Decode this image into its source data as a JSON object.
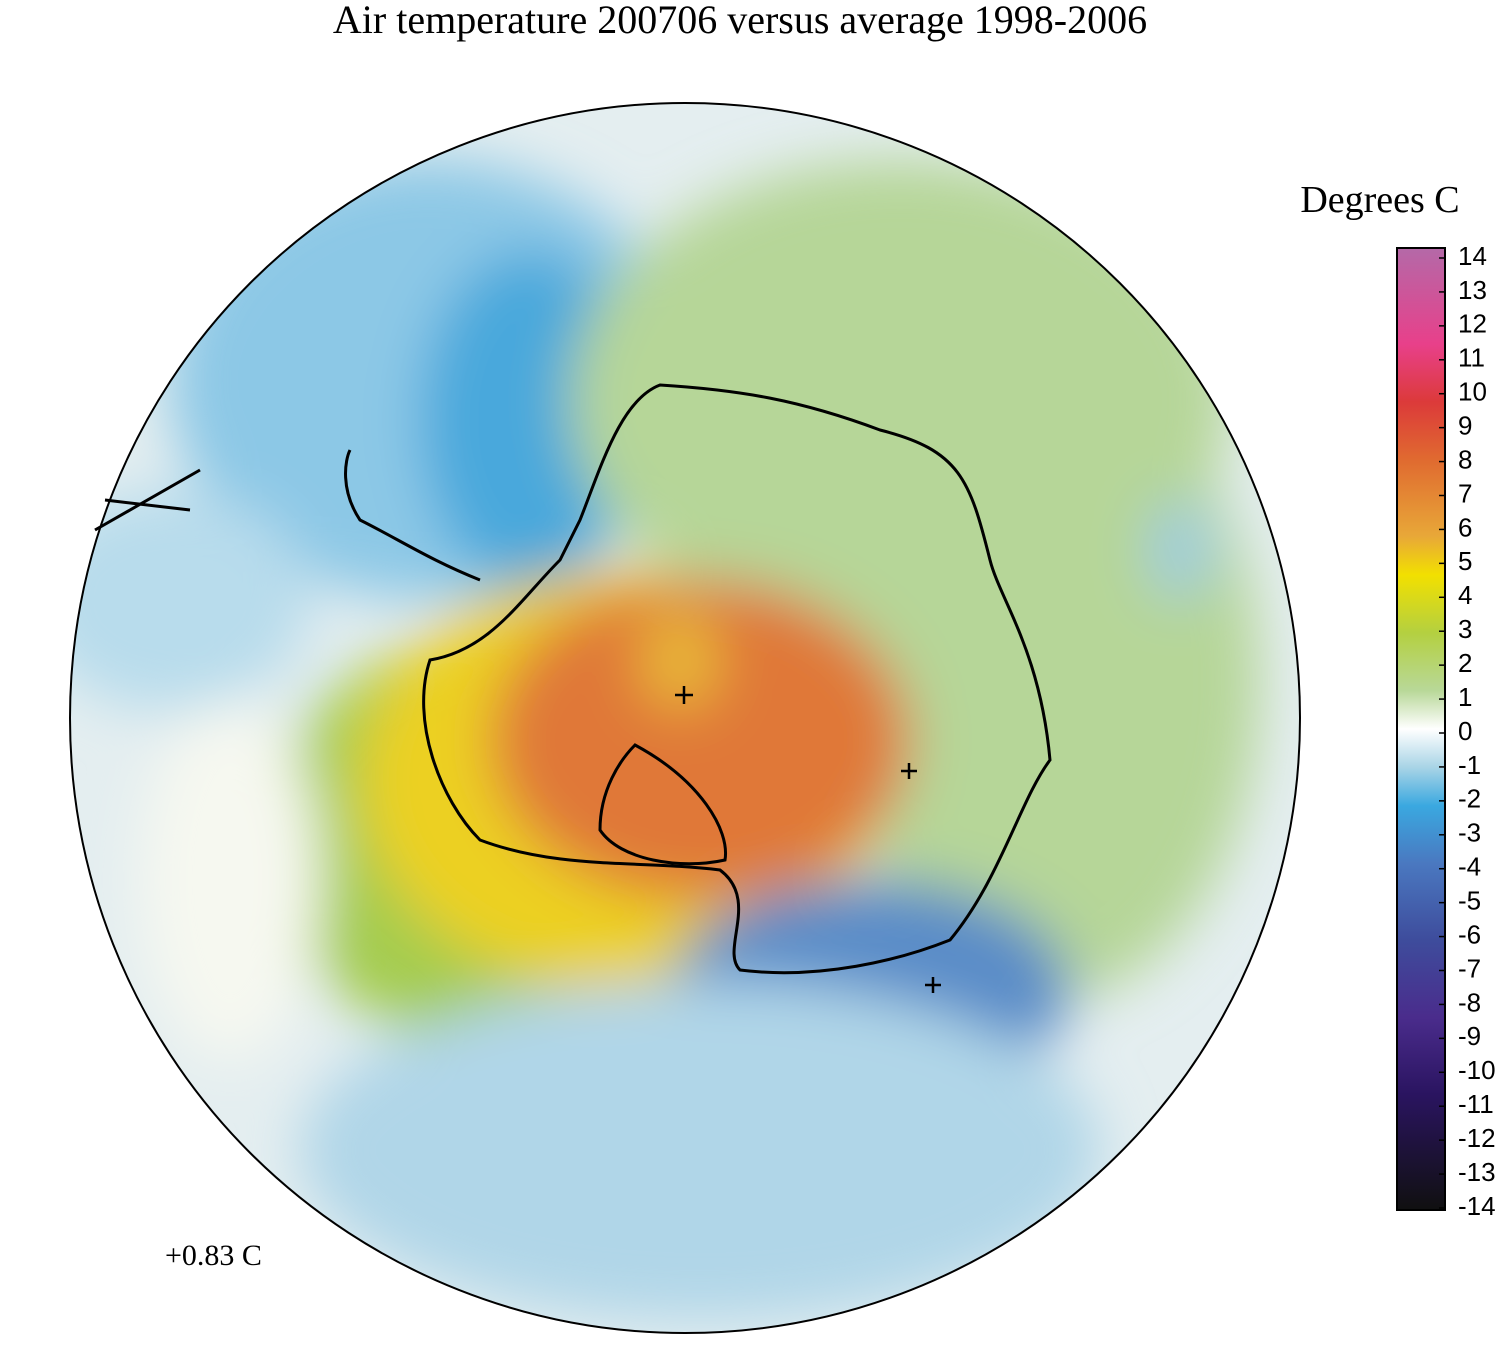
{
  "title": "Air temperature 200706 versus average 1998-2006",
  "colorbar": {
    "label": "Degrees C",
    "range": [
      -14,
      14
    ],
    "ticks": [
      14,
      13,
      12,
      11,
      10,
      9,
      8,
      7,
      6,
      5,
      4,
      3,
      2,
      1,
      0,
      -1,
      -2,
      -3,
      -4,
      -5,
      -6,
      -7,
      -8,
      -9,
      -10,
      -11,
      -12,
      -13,
      -14
    ]
  },
  "annotation": "+0.83 C"
}
